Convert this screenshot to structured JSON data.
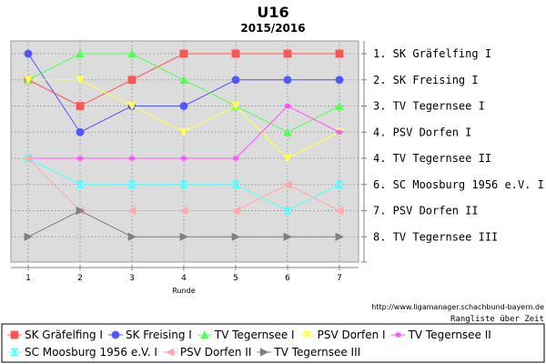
{
  "chart_data": {
    "type": "line",
    "title": "U16",
    "subtitle": "2015/2016",
    "xlabel": "Runde",
    "x": [
      1,
      2,
      3,
      4,
      5,
      6,
      7
    ],
    "y_rank_labels": [
      "1. SK Gräfelfing I",
      "2. SK Freising I",
      "3. TV Tegernsee I",
      "4. PSV Dorfen I",
      "4. TV Tegernsee II",
      "6. SC Moosburg 1956 e.V. I",
      "7. PSV Dorfen II",
      "8. TV Tegernsee III"
    ],
    "ylim": [
      1,
      8
    ],
    "grid": true,
    "legend_position": "bottom",
    "series": [
      {
        "name": "SK Gräfelfing I",
        "color": "#ff5555",
        "marker": "square",
        "values": [
          2,
          3,
          2,
          1,
          1,
          1,
          1
        ]
      },
      {
        "name": "SK Freising I",
        "color": "#5555ff",
        "marker": "circle",
        "values": [
          1,
          4,
          3,
          3,
          2,
          2,
          2
        ]
      },
      {
        "name": "TV Tegernsee I",
        "color": "#55ff55",
        "marker": "triangle-up",
        "values": [
          2,
          1,
          1,
          2,
          3,
          4,
          3
        ]
      },
      {
        "name": "PSV Dorfen I",
        "color": "#ffff55",
        "marker": "triangle-down",
        "values": [
          2,
          2,
          3,
          4,
          3,
          5,
          4
        ]
      },
      {
        "name": "TV Tegernsee II",
        "color": "#ff55ff",
        "marker": "square-cross",
        "values": [
          5,
          5,
          5,
          5,
          5,
          3,
          4
        ]
      },
      {
        "name": "SC Moosburg 1956 e.V. I",
        "color": "#55ffff",
        "marker": "hourglass",
        "values": [
          5,
          6,
          6,
          6,
          6,
          7,
          6
        ]
      },
      {
        "name": "PSV Dorfen II",
        "color": "#ffaaaa",
        "marker": "triangle-left",
        "values": [
          5,
          7,
          7,
          7,
          7,
          6,
          7
        ]
      },
      {
        "name": "TV Tegernsee III",
        "color": "#808080",
        "marker": "triangle-right",
        "values": [
          8,
          7,
          8,
          8,
          8,
          8,
          8
        ]
      }
    ]
  },
  "credits": {
    "url": "http://www.ligamanager.schachbund-bayern.de",
    "note": "Rangliste über Zeit"
  }
}
